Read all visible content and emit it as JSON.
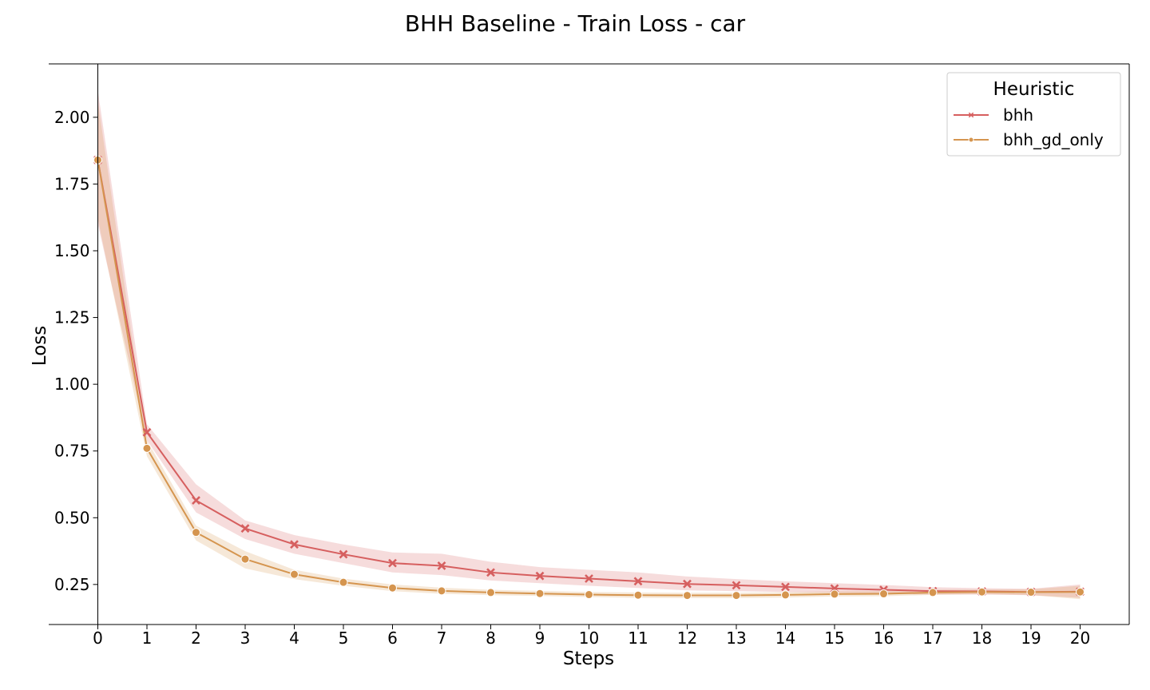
{
  "chart_data": {
    "type": "line",
    "title": "BHH Baseline - Train Loss - car",
    "xlabel": "Steps",
    "ylabel": "Loss",
    "x": [
      0,
      1,
      2,
      3,
      4,
      5,
      6,
      7,
      8,
      9,
      10,
      11,
      12,
      13,
      14,
      15,
      16,
      17,
      18,
      19,
      20
    ],
    "xlim": [
      -1,
      21
    ],
    "ylim": [
      0.1,
      2.2
    ],
    "yticks": [
      0.25,
      0.5,
      0.75,
      1.0,
      1.25,
      1.5,
      1.75,
      2.0
    ],
    "ytick_labels": [
      "0.25",
      "0.50",
      "0.75",
      "1.00",
      "1.25",
      "1.50",
      "1.75",
      "2.00"
    ],
    "grid": false,
    "legend": {
      "title": "Heuristic",
      "placement": "top-right"
    },
    "series": [
      {
        "name": "bhh",
        "color": "#d65f5f",
        "marker": "x",
        "values": [
          1.84,
          0.82,
          0.565,
          0.46,
          0.4,
          0.363,
          0.33,
          0.32,
          0.295,
          0.282,
          0.272,
          0.262,
          0.252,
          0.247,
          0.241,
          0.235,
          0.23,
          0.225,
          0.224,
          0.222,
          0.223
        ],
        "ci_low": [
          1.6,
          0.79,
          0.52,
          0.42,
          0.365,
          0.33,
          0.295,
          0.285,
          0.265,
          0.255,
          0.245,
          0.237,
          0.228,
          0.225,
          0.222,
          0.218,
          0.215,
          0.212,
          0.212,
          0.21,
          0.2
        ],
        "ci_high": [
          2.1,
          0.85,
          0.625,
          0.49,
          0.435,
          0.4,
          0.37,
          0.365,
          0.335,
          0.315,
          0.305,
          0.295,
          0.28,
          0.27,
          0.262,
          0.255,
          0.248,
          0.24,
          0.236,
          0.234,
          0.25
        ]
      },
      {
        "name": "bhh_gd_only",
        "color": "#d5954f",
        "marker": "o",
        "values": [
          1.84,
          0.76,
          0.445,
          0.345,
          0.288,
          0.258,
          0.237,
          0.226,
          0.22,
          0.216,
          0.212,
          0.21,
          0.209,
          0.209,
          0.211,
          0.214,
          0.215,
          0.22,
          0.222,
          0.221,
          0.222
        ],
        "ci_low": [
          1.62,
          0.73,
          0.415,
          0.31,
          0.27,
          0.245,
          0.225,
          0.215,
          0.21,
          0.207,
          0.203,
          0.2,
          0.199,
          0.199,
          0.201,
          0.205,
          0.206,
          0.211,
          0.214,
          0.21,
          0.195
        ],
        "ci_high": [
          2.06,
          0.79,
          0.47,
          0.375,
          0.305,
          0.272,
          0.25,
          0.238,
          0.23,
          0.226,
          0.222,
          0.22,
          0.219,
          0.219,
          0.221,
          0.224,
          0.225,
          0.23,
          0.231,
          0.232,
          0.245
        ]
      }
    ]
  }
}
